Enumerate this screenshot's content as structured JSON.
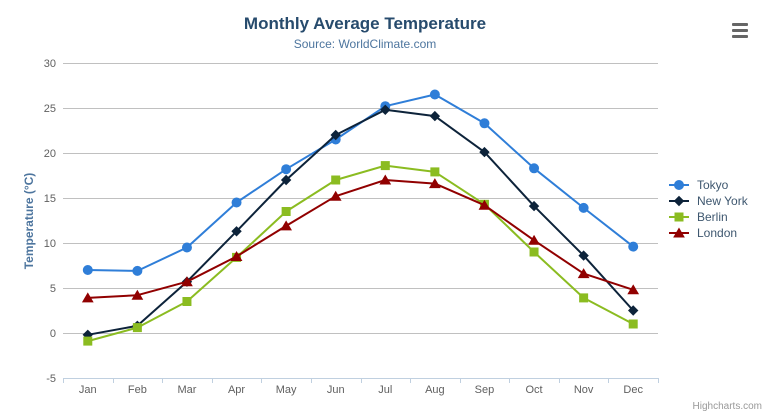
{
  "chart": {
    "title": "Monthly Average Temperature",
    "subtitle": "Source: WorldClimate.com",
    "credits": "Highcharts.com",
    "context_menu_icon": "hamburger-icon"
  },
  "chart_data": {
    "type": "line",
    "categories": [
      "Jan",
      "Feb",
      "Mar",
      "Apr",
      "May",
      "Jun",
      "Jul",
      "Aug",
      "Sep",
      "Oct",
      "Nov",
      "Dec"
    ],
    "series": [
      {
        "name": "Tokyo",
        "color": "#2f7ed8",
        "marker": "circle",
        "values": [
          7.0,
          6.9,
          9.5,
          14.5,
          18.2,
          21.5,
          25.2,
          26.5,
          23.3,
          18.3,
          13.9,
          9.6
        ]
      },
      {
        "name": "New York",
        "color": "#0d233a",
        "marker": "diamond",
        "values": [
          -0.2,
          0.8,
          5.7,
          11.3,
          17.0,
          22.0,
          24.8,
          24.1,
          20.1,
          14.1,
          8.6,
          2.5
        ]
      },
      {
        "name": "Berlin",
        "color": "#8bbc21",
        "marker": "square",
        "values": [
          -0.9,
          0.6,
          3.5,
          8.4,
          13.5,
          17.0,
          18.6,
          17.9,
          14.3,
          9.0,
          3.9,
          1.0
        ]
      },
      {
        "name": "London",
        "color": "#910000",
        "marker": "triangle",
        "values": [
          3.9,
          4.2,
          5.7,
          8.5,
          11.9,
          15.2,
          17.0,
          16.6,
          14.2,
          10.3,
          6.6,
          4.8
        ]
      }
    ],
    "title": "Monthly Average Temperature",
    "subtitle": "Source: WorldClimate.com",
    "xlabel": "",
    "ylabel": "Temperature (°C)",
    "ylim": [
      -5,
      30
    ],
    "ytick_step": 5,
    "grid": true,
    "legend_position": "right",
    "axis_colors": {
      "gridline": "#C0C0C0",
      "axis_line": "#C0D0E0",
      "tick_label": "#606060"
    }
  }
}
